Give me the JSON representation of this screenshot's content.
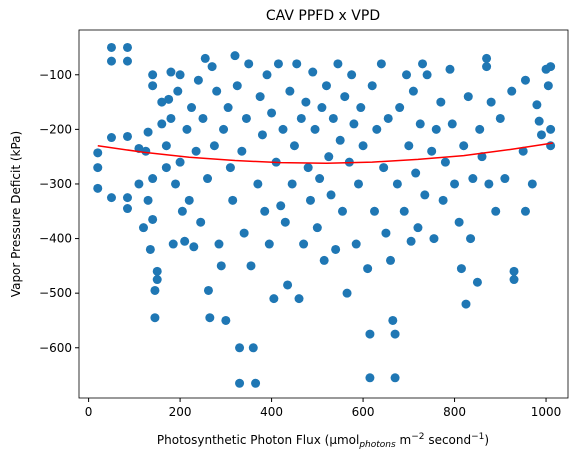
{
  "chart_data": {
    "type": "scatter",
    "title": "CAV PPFD x VPD",
    "xlabel": [
      "Photosynthetic Photon Flux (µmol",
      "photons",
      " m",
      "−2",
      " second",
      "−1",
      ")"
    ],
    "ylabel": "Vapor Pressure Deficit (kPa)",
    "xlim": [
      -21,
      1048
    ],
    "ylim": [
      -692,
      -18
    ],
    "xticks": [
      0,
      200,
      400,
      600,
      800,
      1000
    ],
    "yticks": [
      {
        "value": -100,
        "label": "−100"
      },
      {
        "value": -200,
        "label": "−200"
      },
      {
        "value": -300,
        "label": "−300"
      },
      {
        "value": -400,
        "label": "−400"
      },
      {
        "value": -500,
        "label": "−500"
      },
      {
        "value": -600,
        "label": "−600"
      }
    ],
    "points": {
      "color": "#1f77b4",
      "x": [
        20,
        20,
        20,
        50,
        50,
        50,
        50,
        85,
        85,
        85,
        85,
        85,
        110,
        110,
        120,
        125,
        130,
        130,
        135,
        140,
        140,
        140,
        140,
        145,
        145,
        150,
        150,
        160,
        160,
        170,
        170,
        175,
        180,
        180,
        185,
        190,
        195,
        200,
        200,
        205,
        210,
        215,
        220,
        225,
        230,
        235,
        240,
        245,
        250,
        255,
        260,
        262,
        265,
        270,
        275,
        280,
        285,
        290,
        295,
        300,
        305,
        310,
        315,
        320,
        325,
        330,
        330,
        335,
        340,
        345,
        350,
        355,
        360,
        365,
        370,
        375,
        380,
        385,
        390,
        395,
        400,
        405,
        410,
        415,
        420,
        425,
        430,
        435,
        440,
        445,
        450,
        455,
        460,
        465,
        470,
        475,
        480,
        485,
        490,
        495,
        500,
        505,
        510,
        515,
        520,
        525,
        530,
        535,
        540,
        545,
        550,
        555,
        560,
        565,
        570,
        575,
        580,
        585,
        590,
        595,
        600,
        610,
        615,
        615,
        620,
        625,
        630,
        640,
        645,
        650,
        655,
        660,
        665,
        670,
        670,
        675,
        680,
        690,
        695,
        700,
        705,
        710,
        715,
        720,
        725,
        730,
        735,
        740,
        750,
        755,
        760,
        770,
        775,
        780,
        790,
        795,
        800,
        810,
        815,
        820,
        825,
        830,
        835,
        840,
        850,
        855,
        860,
        870,
        870,
        875,
        880,
        890,
        900,
        910,
        925,
        930,
        930,
        950,
        955,
        955,
        970,
        980,
        985,
        990,
        1000,
        1005,
        1010,
        1010,
        1010
      ],
      "y": [
        -243,
        -270,
        -308,
        -50,
        -75,
        -215,
        -325,
        -50,
        -75,
        -213,
        -325,
        -345,
        -235,
        -300,
        -380,
        -240,
        -205,
        -330,
        -420,
        -100,
        -120,
        -290,
        -365,
        -545,
        -495,
        -460,
        -475,
        -150,
        -190,
        -230,
        -270,
        -145,
        -95,
        -180,
        -410,
        -300,
        -130,
        -100,
        -260,
        -350,
        -405,
        -200,
        -330,
        -160,
        -415,
        -240,
        -110,
        -370,
        -180,
        -70,
        -290,
        -495,
        -545,
        -85,
        -230,
        -130,
        -410,
        -450,
        -200,
        -550,
        -160,
        -270,
        -330,
        -65,
        -120,
        -600,
        -665,
        -240,
        -390,
        -180,
        -80,
        -450,
        -600,
        -665,
        -300,
        -140,
        -210,
        -350,
        -100,
        -410,
        -170,
        -510,
        -260,
        -80,
        -340,
        -200,
        -370,
        -485,
        -130,
        -300,
        -230,
        -80,
        -510,
        -180,
        -410,
        -150,
        -270,
        -330,
        -95,
        -200,
        -380,
        -290,
        -160,
        -440,
        -120,
        -250,
        -320,
        -180,
        -420,
        -80,
        -220,
        -350,
        -140,
        -500,
        -260,
        -100,
        -190,
        -410,
        -300,
        -160,
        -230,
        -455,
        -575,
        -655,
        -120,
        -350,
        -200,
        -80,
        -270,
        -390,
        -180,
        -440,
        -550,
        -575,
        -655,
        -300,
        -160,
        -350,
        -100,
        -230,
        -405,
        -130,
        -280,
        -380,
        -190,
        -80,
        -320,
        -100,
        -240,
        -400,
        -200,
        -150,
        -330,
        -260,
        -90,
        -190,
        -300,
        -370,
        -455,
        -230,
        -520,
        -140,
        -400,
        -290,
        -480,
        -200,
        -250,
        -70,
        -85,
        -300,
        -150,
        -350,
        -180,
        -290,
        -130,
        -460,
        -475,
        -240,
        -110,
        -350,
        -300,
        -155,
        -185,
        -210,
        -90,
        -120,
        -85,
        -230,
        -200
      ]
    },
    "fit": {
      "color": "#ff0000",
      "x": [
        20,
        120,
        220,
        320,
        420,
        520,
        620,
        720,
        820,
        920,
        1015
      ],
      "y": [
        -230,
        -242,
        -251,
        -257,
        -261,
        -262,
        -260,
        -255,
        -248,
        -237,
        -225
      ]
    }
  }
}
